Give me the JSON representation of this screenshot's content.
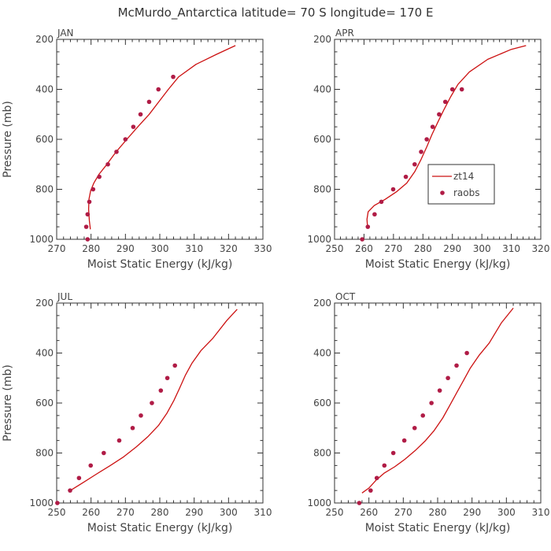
{
  "figure_title": "McMurdo_Antarctica  latitude= 70 S longitude= 170 E",
  "legend": {
    "model_label": "zt14",
    "obs_label": "raobs",
    "placement": "inside APR panel, middle-right"
  },
  "colors": {
    "model_line": "#cc1111",
    "obs_points": "#b01c46",
    "axis": "#333333",
    "text": "#444444"
  },
  "chart_data": [
    {
      "type": "line",
      "panel": "JAN",
      "title": "JAN",
      "xlabel": "Moist Static Energy (kJ/kg)",
      "ylabel": "Pressure (mb)",
      "xlim": [
        270,
        330
      ],
      "ylim": [
        1000,
        200
      ],
      "y_inverted": true,
      "xticks": [
        270,
        280,
        290,
        300,
        310,
        320,
        330
      ],
      "yticks": [
        200,
        400,
        600,
        800,
        1000
      ],
      "series": [
        {
          "name": "zt14",
          "kind": "line",
          "x": [
            279.8,
            279.5,
            279.3,
            279.4,
            279.9,
            280.8,
            282.3,
            284.6,
            287.3,
            290.4,
            293.6,
            296.9,
            299.7,
            302.5,
            305.5,
            310.5,
            316.5,
            322.0
          ],
          "y": [
            960,
            925,
            880,
            840,
            805,
            775,
            740,
            700,
            650,
            600,
            550,
            500,
            450,
            400,
            350,
            300,
            260,
            225
          ]
        },
        {
          "name": "raobs",
          "kind": "scatter",
          "x": [
            279.0,
            278.6,
            279.0,
            279.5,
            280.6,
            282.4,
            284.9,
            287.4,
            290.0,
            292.3,
            294.4,
            296.9,
            299.6,
            303.9
          ],
          "y": [
            1000,
            950,
            900,
            850,
            800,
            750,
            700,
            650,
            600,
            550,
            500,
            450,
            400,
            350
          ]
        }
      ]
    },
    {
      "type": "line",
      "panel": "APR",
      "title": "APR",
      "xlabel": "Moist Static Energy (kJ/kg)",
      "ylabel": "",
      "xlim": [
        250,
        320
      ],
      "ylim": [
        1000,
        200
      ],
      "y_inverted": true,
      "xticks": [
        250,
        260,
        270,
        280,
        290,
        300,
        310,
        320
      ],
      "yticks": [
        200,
        400,
        600,
        800,
        1000
      ],
      "series": [
        {
          "name": "zt14",
          "kind": "line",
          "x": [
            261.2,
            261.0,
            261.4,
            263.5,
            267.2,
            271.0,
            274.5,
            277.2,
            279.4,
            281.3,
            283.1,
            285.1,
            287.2,
            289.4,
            291.9,
            295.8,
            302.0,
            310.0,
            315.0
          ],
          "y": [
            950,
            920,
            890,
            865,
            840,
            810,
            775,
            730,
            680,
            630,
            580,
            530,
            480,
            430,
            380,
            330,
            280,
            240,
            225
          ]
        },
        {
          "name": "raobs",
          "kind": "scatter",
          "x": [
            259.4,
            261.3,
            263.6,
            265.9,
            269.9,
            274.2,
            277.2,
            279.4,
            281.3,
            283.3,
            285.5,
            287.6,
            290.0,
            293.2
          ],
          "y": [
            1000,
            950,
            900,
            850,
            800,
            750,
            700,
            650,
            600,
            550,
            500,
            450,
            400,
            400
          ]
        }
      ]
    },
    {
      "type": "line",
      "panel": "JUL",
      "title": "JUL",
      "xlabel": "Moist Static Energy (kJ/kg)",
      "ylabel": "Pressure (mb)",
      "xlim": [
        250,
        310
      ],
      "ylim": [
        1000,
        200
      ],
      "y_inverted": true,
      "xticks": [
        250,
        260,
        270,
        280,
        290,
        300,
        310
      ],
      "yticks": [
        200,
        400,
        600,
        800,
        1000
      ],
      "series": [
        {
          "name": "zt14",
          "kind": "line",
          "x": [
            254.0,
            257.5,
            261.5,
            265.6,
            269.5,
            273.2,
            276.5,
            279.6,
            282.1,
            284.1,
            285.8,
            287.4,
            289.4,
            292.0,
            295.5,
            299.5,
            302.5
          ],
          "y": [
            950,
            920,
            885,
            850,
            815,
            775,
            735,
            690,
            640,
            590,
            540,
            490,
            440,
            390,
            340,
            270,
            225
          ]
        },
        {
          "name": "raobs",
          "kind": "scatter",
          "x": [
            250.2,
            253.9,
            256.5,
            259.9,
            263.7,
            268.2,
            272.1,
            274.5,
            277.7,
            280.3,
            282.2,
            284.4
          ],
          "y": [
            1000,
            950,
            900,
            850,
            800,
            750,
            700,
            650,
            600,
            550,
            500,
            450
          ]
        }
      ]
    },
    {
      "type": "line",
      "panel": "OCT",
      "title": "OCT",
      "xlabel": "Moist Static Energy (kJ/kg)",
      "ylabel": "",
      "xlim": [
        250,
        310
      ],
      "ylim": [
        1000,
        200
      ],
      "y_inverted": true,
      "xticks": [
        250,
        260,
        270,
        280,
        290,
        300,
        310
      ],
      "yticks": [
        200,
        400,
        600,
        800,
        1000
      ],
      "series": [
        {
          "name": "zt14",
          "kind": "line",
          "x": [
            258.0,
            260.0,
            262.0,
            264.5,
            267.5,
            270.5,
            273.5,
            276.5,
            279.0,
            281.5,
            283.5,
            285.5,
            287.5,
            289.5,
            292.0,
            295.0,
            298.5,
            302.0
          ],
          "y": [
            960,
            940,
            910,
            880,
            855,
            825,
            790,
            750,
            710,
            660,
            610,
            560,
            510,
            460,
            410,
            360,
            280,
            220
          ]
        },
        {
          "name": "raobs",
          "kind": "scatter",
          "x": [
            257.2,
            260.5,
            262.3,
            264.5,
            267.1,
            270.3,
            273.3,
            275.7,
            278.2,
            280.6,
            283.0,
            285.5,
            288.5
          ],
          "y": [
            1000,
            950,
            900,
            850,
            800,
            750,
            700,
            650,
            600,
            550,
            500,
            450,
            400
          ]
        }
      ]
    }
  ]
}
